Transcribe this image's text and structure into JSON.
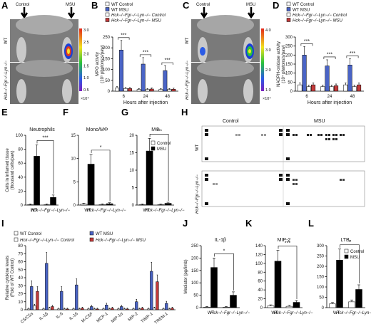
{
  "colors": {
    "wt_control": "#ffffff",
    "wt_msu": "#4a64c6",
    "ko_control": "#ffffff",
    "ko_msu": "#c43a3a",
    "msu_black": "#000000",
    "control_white": "#ffffff"
  },
  "panels": {
    "A": {
      "letter": "A",
      "arrow_left": "Control",
      "arrow_right": "MSU",
      "row_top": "WT",
      "row_bottom": "Hck−/−Fgr−/−Lyn−/−",
      "colorbar_ticks": [
        "3.0",
        "2.5",
        "2.0",
        "1.5",
        "1.0",
        "0.5"
      ],
      "colorbar_unit": "×10⁴"
    },
    "C": {
      "letter": "C",
      "arrow_left": "Control",
      "arrow_right": "MSU",
      "row_top": "WT",
      "row_bottom": "Hck−/−Fgr−/−Lyn−/−",
      "colorbar_ticks": [
        "4.0",
        "3.0",
        "2.0",
        "1.0"
      ],
      "colorbar_unit": "×10⁴"
    },
    "H": {
      "letter": "H",
      "col_left": "Control",
      "col_right": "MSU",
      "row_top": "WT",
      "row_bottom": "Hck−/−Fgr−/−Lyn−/−"
    }
  },
  "legends": {
    "top": [
      "WT Control",
      "WT MSU",
      "Hck−/−Fgr−/−Lyn−/− Control",
      "Hck−/−Fgr−/−Lyn−/− MSU"
    ],
    "I": [
      "WT Control",
      "WT MSU",
      "Hck−/−Fgr−/−Lyn−/− Control",
      "Hck−/−Fgr−/−Lyn−/− MSU"
    ],
    "two": [
      "Control",
      "MSU"
    ]
  },
  "chart_data": [
    {
      "id": "B",
      "type": "bar",
      "ylabel": "MPO activity",
      "yunit": "(10⁵ photons/s/paw)",
      "xlabel": "Hours after injection",
      "categories": [
        "6",
        "24",
        "48"
      ],
      "ylim": [
        0,
        250
      ],
      "yticks": [
        0,
        50,
        100,
        150,
        200,
        250
      ],
      "sig": "***",
      "series": [
        {
          "name": "WT Control",
          "values": [
            15,
            8,
            8
          ]
        },
        {
          "name": "WT MSU",
          "values": [
            190,
            125,
            95
          ]
        },
        {
          "name": "Hck−/−Fgr−/−Lyn−/− Control",
          "values": [
            12,
            8,
            8
          ]
        },
        {
          "name": "Hck−/−Fgr−/−Lyn−/− MSU",
          "values": [
            12,
            10,
            9
          ]
        }
      ]
    },
    {
      "id": "D",
      "type": "bar",
      "ylabel": "NADPH-oxidase activity",
      "yunit": "(10⁴ photons/s/paw)",
      "xlabel": "Hours after injection",
      "categories": [
        "6",
        "24",
        "48"
      ],
      "ylim": [
        0,
        300
      ],
      "yticks": [
        0,
        50,
        100,
        150,
        200,
        250,
        300
      ],
      "sig": "***",
      "series": [
        {
          "name": "WT Control",
          "values": [
            35,
            25,
            35
          ]
        },
        {
          "name": "WT MSU",
          "values": [
            200,
            140,
            145
          ]
        },
        {
          "name": "Hck−/−Fgr−/−Lyn−/− Control",
          "values": [
            25,
            25,
            25
          ]
        },
        {
          "name": "Hck−/−Fgr−/−Lyn−/− MSU",
          "values": [
            35,
            30,
            35
          ]
        }
      ]
    },
    {
      "id": "E",
      "type": "bar",
      "title": "Neutrophils",
      "ylabel": "Cells in inflamed tissue",
      "yunit": "(thousand cells/paw)",
      "categories": [
        "WT",
        "Hck−/−Fgr−/−Lyn−/−"
      ],
      "ylim": [
        0,
        100
      ],
      "yticks": [
        0,
        20,
        40,
        60,
        80,
        100
      ],
      "sig": "***",
      "series": [
        {
          "name": "Control",
          "values": [
            0.5,
            0.5
          ]
        },
        {
          "name": "MSU",
          "values": [
            70,
            11
          ]
        }
      ]
    },
    {
      "id": "F",
      "type": "bar",
      "title": "Mono/MΦ",
      "categories": [
        "WT",
        "Hck−/−Fgr−/−Lyn−/−"
      ],
      "ylim": [
        0,
        15
      ],
      "yticks": [
        0,
        5,
        10,
        15
      ],
      "sig": "*",
      "series": [
        {
          "name": "Control",
          "values": [
            0.2,
            0.1
          ]
        },
        {
          "name": "MSU",
          "values": [
            8.8,
            0.3
          ]
        }
      ]
    },
    {
      "id": "G",
      "type": "bar",
      "title": "MΦ",
      "categories": [
        "WT",
        "Hck−/−Fgr−/−Lyn−/−"
      ],
      "ylim": [
        0,
        20
      ],
      "yticks": [
        0,
        5,
        10,
        15,
        20
      ],
      "sig": "***",
      "series": [
        {
          "name": "Control",
          "values": [
            0.1,
            0.1
          ]
        },
        {
          "name": "MSU",
          "values": [
            15.5,
            0.5
          ]
        }
      ]
    },
    {
      "id": "I",
      "type": "bar",
      "ylabel": "Relative cytokine levels",
      "yunit": "(Fold of WT Control)",
      "categories": [
        "C5/C5a",
        "IL-1β",
        "IL-6",
        "IL-16",
        "M-CSF",
        "MCP-1",
        "MIP-1α",
        "MIP-2",
        "TIMP-1",
        "TREM-1"
      ],
      "ylim": [
        0,
        80
      ],
      "yticks": [
        0,
        10,
        20,
        30,
        40,
        50,
        60,
        70,
        80
      ],
      "series": [
        {
          "name": "WT Control",
          "values": [
            1,
            1,
            1,
            1,
            1,
            1,
            1,
            1,
            1,
            1
          ]
        },
        {
          "name": "WT MSU",
          "values": [
            29,
            58,
            23,
            31,
            4,
            6,
            4,
            10,
            48,
            8
          ]
        },
        {
          "name": "Hck−/−Fgr−/−Lyn−/− Control",
          "values": [
            5,
            2,
            1,
            1,
            1,
            1,
            1,
            1,
            2,
            1
          ]
        },
        {
          "name": "Hck−/−Fgr−/−Lyn−/− MSU",
          "values": [
            23,
            4,
            1,
            2,
            1,
            2,
            1,
            2,
            35,
            2
          ]
        }
      ]
    },
    {
      "id": "J",
      "type": "bar",
      "title": "IL-1β",
      "ylabel": "Mediator (pg/limb)",
      "categories": [
        "WT",
        "Hck−/−Fgr−/−Lyn−/−"
      ],
      "ylim": [
        0,
        250
      ],
      "yticks": [
        0,
        50,
        100,
        150,
        200,
        250
      ],
      "sig": "*",
      "series": [
        {
          "name": "Control",
          "values": [
            2,
            2
          ]
        },
        {
          "name": "MSU",
          "values": [
            162,
            50
          ]
        }
      ]
    },
    {
      "id": "K",
      "type": "bar",
      "title": "MIP-2",
      "categories": [
        "WT",
        "Hck−/−Fgr−/−Lyn−/−"
      ],
      "ylim": [
        0,
        140
      ],
      "yticks": [
        0,
        20,
        40,
        60,
        80,
        100,
        120,
        140
      ],
      "sig": "***",
      "series": [
        {
          "name": "Control",
          "values": [
            4,
            3
          ]
        },
        {
          "name": "MSU",
          "values": [
            105,
            12
          ]
        }
      ]
    },
    {
      "id": "L",
      "type": "bar",
      "title": "LTB₄",
      "categories": [
        "WT",
        "Hck−/−Fgr−/−Lyn−/−"
      ],
      "ylim": [
        0,
        300
      ],
      "yticks": [
        0,
        50,
        100,
        150,
        200,
        250,
        300
      ],
      "sig": "*",
      "series": [
        {
          "name": "Control",
          "values": [
            18,
            28
          ]
        },
        {
          "name": "MSU",
          "values": [
            230,
            88
          ]
        }
      ]
    }
  ]
}
